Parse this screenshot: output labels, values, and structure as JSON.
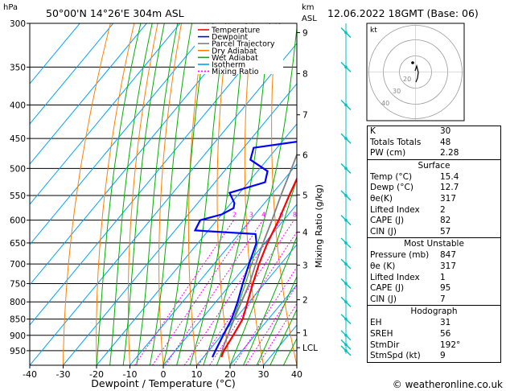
{
  "header": {
    "hpa_label": "hPa",
    "location": "50°00'N  14°26'E  304m  ASL",
    "km_label": "km",
    "asl_label": "ASL",
    "datetime": "12.06.2022  18GMT  (Base: 06)"
  },
  "legend": [
    {
      "name": "Temperature",
      "color": "#ff0000",
      "dash": "none"
    },
    {
      "name": "Dewpoint",
      "color": "#0000ff",
      "dash": "none"
    },
    {
      "name": "Parcel Trajectory",
      "color": "#808080",
      "dash": "none"
    },
    {
      "name": "Dry Adiabat",
      "color": "#ff8000",
      "dash": "none"
    },
    {
      "name": "Wet Adiabat",
      "color": "#00b000",
      "dash": "none"
    },
    {
      "name": "Isotherm",
      "color": "#00a0ff",
      "dash": "none"
    },
    {
      "name": "Mixing Ratio",
      "color": "#ff00ff",
      "dash": "2,2"
    }
  ],
  "chart_data": {
    "type": "line",
    "xlabel": "Dewpoint / Temperature (°C)",
    "ylabel_right": "Mixing Ratio (g/kg)",
    "xlim": [
      -40,
      40
    ],
    "ylim_hpa": [
      300,
      1000
    ],
    "x_ticks": [
      -40,
      -30,
      -20,
      -10,
      0,
      10,
      20,
      30,
      40
    ],
    "pressure_levels": [
      300,
      350,
      400,
      450,
      500,
      550,
      600,
      650,
      700,
      750,
      800,
      850,
      900,
      950
    ],
    "km_ticks": [
      {
        "label": "9",
        "p": 310
      },
      {
        "label": "8",
        "p": 358
      },
      {
        "label": "7",
        "p": 414
      },
      {
        "label": "6",
        "p": 477
      },
      {
        "label": "5",
        "p": 549
      },
      {
        "label": "4",
        "p": 626
      },
      {
        "label": "3",
        "p": 703
      },
      {
        "label": "2",
        "p": 794
      },
      {
        "label": "1",
        "p": 892
      },
      {
        "label": "LCL",
        "p": 940
      }
    ],
    "mixing_ratio_labels": [
      "2",
      "3",
      "4",
      "6",
      "8",
      "10",
      "16",
      "20",
      "25"
    ],
    "mixing_ratio_values": [
      2,
      3,
      4,
      6,
      8,
      10,
      16,
      20,
      25
    ],
    "series": [
      {
        "name": "Temperature",
        "color": "#ff0000",
        "width": 2.2,
        "points": [
          [
            15.4,
            972
          ],
          [
            14.5,
            950
          ],
          [
            13.5,
            900
          ],
          [
            12.3,
            850
          ],
          [
            9.5,
            800
          ],
          [
            6.5,
            750
          ],
          [
            3.5,
            700
          ],
          [
            0.8,
            650
          ],
          [
            -1.5,
            600
          ],
          [
            -4.5,
            550
          ],
          [
            -7.5,
            500
          ],
          [
            -11.5,
            450
          ],
          [
            -17,
            400
          ],
          [
            -23,
            350
          ],
          [
            -30,
            300
          ]
        ]
      },
      {
        "name": "Dewpoint",
        "color": "#0000ff",
        "width": 2.2,
        "points": [
          [
            12.7,
            972
          ],
          [
            12,
            950
          ],
          [
            10.5,
            900
          ],
          [
            9,
            850
          ],
          [
            6.5,
            800
          ],
          [
            3.5,
            750
          ],
          [
            0.5,
            700
          ],
          [
            -2.5,
            650
          ],
          [
            -5,
            630
          ],
          [
            -24,
            622
          ],
          [
            -25,
            600
          ],
          [
            -20,
            588
          ],
          [
            -18,
            575
          ],
          [
            -19,
            565
          ],
          [
            -23,
            545
          ],
          [
            -15,
            525
          ],
          [
            -17,
            505
          ],
          [
            -25,
            485
          ],
          [
            -27,
            465
          ],
          [
            -12,
            452
          ],
          [
            -15,
            415
          ],
          [
            -20,
            385
          ],
          [
            -30,
            300
          ]
        ]
      },
      {
        "name": "Parcel Trajectory",
        "color": "#808080",
        "width": 1.8,
        "points": [
          [
            15.4,
            972
          ],
          [
            13.5,
            940
          ],
          [
            11,
            880
          ],
          [
            8.5,
            820
          ],
          [
            5.5,
            750
          ],
          [
            2.5,
            700
          ],
          [
            -0.5,
            650
          ],
          [
            -3.5,
            600
          ],
          [
            -7,
            550
          ],
          [
            -10.5,
            500
          ],
          [
            -14.5,
            450
          ],
          [
            -19.5,
            400
          ],
          [
            -25.5,
            350
          ],
          [
            -33,
            300
          ]
        ]
      }
    ]
  },
  "hodograph": {
    "label": "kt",
    "ring_labels": [
      "40",
      "30",
      "20"
    ]
  },
  "indices": {
    "top": [
      {
        "label": "K",
        "value": "30"
      },
      {
        "label": "Totals Totals",
        "value": "48"
      },
      {
        "label": "PW (cm)",
        "value": "2.28"
      }
    ],
    "surface": {
      "title": "Surface",
      "rows": [
        {
          "label": "Temp (°C)",
          "value": "15.4"
        },
        {
          "label": "Dewp (°C)",
          "value": "12.7"
        },
        {
          "label": "θe(K)",
          "value": "317"
        },
        {
          "label": "Lifted Index",
          "value": "2"
        },
        {
          "label": "CAPE (J)",
          "value": "82"
        },
        {
          "label": "CIN (J)",
          "value": "57"
        }
      ]
    },
    "most_unstable": {
      "title": "Most Unstable",
      "rows": [
        {
          "label": "Pressure (mb)",
          "value": "847"
        },
        {
          "label": "θe (K)",
          "value": "317"
        },
        {
          "label": "Lifted Index",
          "value": "1"
        },
        {
          "label": "CAPE (J)",
          "value": "95"
        },
        {
          "label": "CIN (J)",
          "value": "7"
        }
      ]
    },
    "hodograph_block": {
      "title": "Hodograph",
      "rows": [
        {
          "label": "EH",
          "value": "31"
        },
        {
          "label": "SREH",
          "value": "56"
        },
        {
          "label": "StmDir",
          "value": "192°"
        },
        {
          "label": "StmSpd (kt)",
          "value": "9"
        }
      ]
    }
  },
  "footer": {
    "copyright": "© weatheronline.co.uk"
  },
  "colors": {
    "accent": "#00c0ff",
    "wind": "#00c0c0"
  }
}
